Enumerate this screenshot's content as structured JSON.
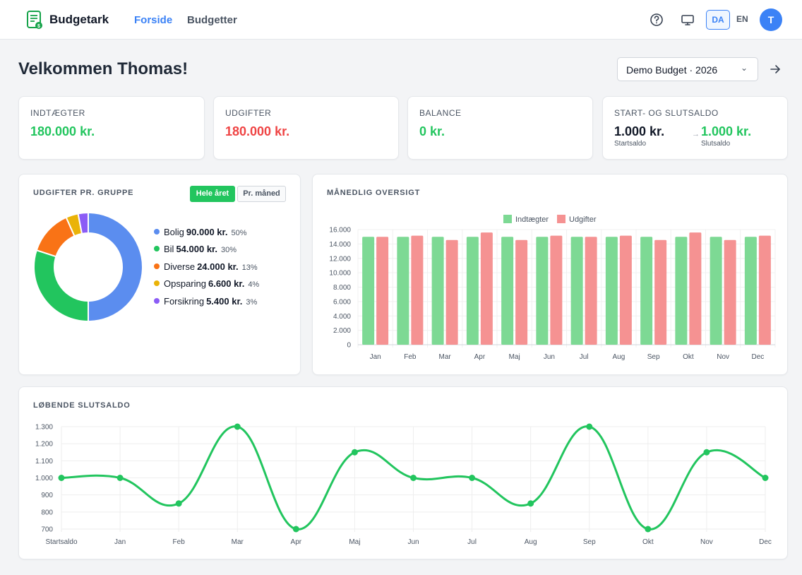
{
  "app": {
    "name": "Budgetark"
  },
  "nav": {
    "home": "Forside",
    "budgets": "Budgetter"
  },
  "header": {
    "lang_da": "DA",
    "lang_en": "EN",
    "avatar_initial": "T"
  },
  "page": {
    "welcome": "Velkommen Thomas!",
    "selected_budget": "Demo Budget · 2026"
  },
  "stats": {
    "income": {
      "label": "INDTÆGTER",
      "value": "180.000 kr."
    },
    "expenses": {
      "label": "UDGIFTER",
      "value": "180.000 kr."
    },
    "balance": {
      "label": "BALANCE",
      "value": "0 kr."
    },
    "start_end": {
      "label": "START- OG SLUTSALDO",
      "start_value": "1.000 kr.",
      "start_label": "Startsaldo",
      "end_value": "1.000 kr.",
      "end_label": "Slutsaldo"
    }
  },
  "group_card": {
    "title": "UDGIFTER PR. GRUPPE",
    "btn_year": "Hele året",
    "btn_month": "Pr. måned",
    "items": [
      {
        "name": "Bolig",
        "amount": "90.000 kr.",
        "pct": "50%",
        "color": "#5b8def"
      },
      {
        "name": "Bil",
        "amount": "54.000 kr.",
        "pct": "30%",
        "color": "#22c55e"
      },
      {
        "name": "Diverse",
        "amount": "24.000 kr.",
        "pct": "13%",
        "color": "#f97316"
      },
      {
        "name": "Opsparing",
        "amount": "6.600 kr.",
        "pct": "4%",
        "color": "#eab308"
      },
      {
        "name": "Forsikring",
        "amount": "5.400 kr.",
        "pct": "3%",
        "color": "#8b5cf6"
      }
    ]
  },
  "monthly_card": {
    "title": "MÅNEDLIG OVERSIGT"
  },
  "running_card": {
    "title": "LØBENDE SLUTSALDO"
  },
  "chart_data": [
    {
      "type": "pie",
      "title": "UDGIFTER PR. GRUPPE",
      "labels": [
        "Bolig",
        "Bil",
        "Diverse",
        "Opsparing",
        "Forsikring"
      ],
      "values": [
        90000,
        54000,
        24000,
        6600,
        5400
      ],
      "colors": [
        "#5b8def",
        "#22c55e",
        "#f97316",
        "#eab308",
        "#8b5cf6"
      ],
      "donut": true
    },
    {
      "type": "bar",
      "title": "MÅNEDLIG OVERSIGT",
      "categories": [
        "Jan",
        "Feb",
        "Mar",
        "Apr",
        "Maj",
        "Jun",
        "Jul",
        "Aug",
        "Sep",
        "Okt",
        "Nov",
        "Dec"
      ],
      "series": [
        {
          "name": "Indtægter",
          "color": "#7dd994",
          "values": [
            15000,
            15000,
            15000,
            15000,
            15000,
            15000,
            15000,
            15000,
            15000,
            15000,
            15000,
            15000
          ]
        },
        {
          "name": "Udgifter",
          "color": "#f59292",
          "values": [
            15000,
            15150,
            14550,
            15600,
            14550,
            15150,
            15000,
            15150,
            14550,
            15600,
            14550,
            15150
          ]
        }
      ],
      "ylim": [
        0,
        16000
      ],
      "yticks": [
        0,
        2000,
        4000,
        6000,
        8000,
        10000,
        12000,
        14000,
        16000
      ],
      "ytick_labels": [
        "0",
        "2.000",
        "4.000",
        "6.000",
        "8.000",
        "10.000",
        "12.000",
        "14.000",
        "16.000"
      ],
      "legend": "top-center",
      "grid": true
    },
    {
      "type": "line",
      "title": "LØBENDE SLUTSALDO",
      "categories": [
        "Startsaldo",
        "Jan",
        "Feb",
        "Mar",
        "Apr",
        "Maj",
        "Jun",
        "Jul",
        "Aug",
        "Sep",
        "Okt",
        "Nov",
        "Dec"
      ],
      "values": [
        1000,
        1000,
        850,
        1300,
        700,
        1150,
        1000,
        1000,
        850,
        1300,
        700,
        1150,
        1000
      ],
      "color": "#22c55e",
      "ylim": [
        700,
        1300
      ],
      "yticks": [
        700,
        800,
        900,
        1000,
        1100,
        1200,
        1300
      ],
      "ytick_labels": [
        "700",
        "800",
        "900",
        "1.000",
        "1.100",
        "1.200",
        "1.300"
      ],
      "grid": true,
      "smooth": true
    }
  ]
}
